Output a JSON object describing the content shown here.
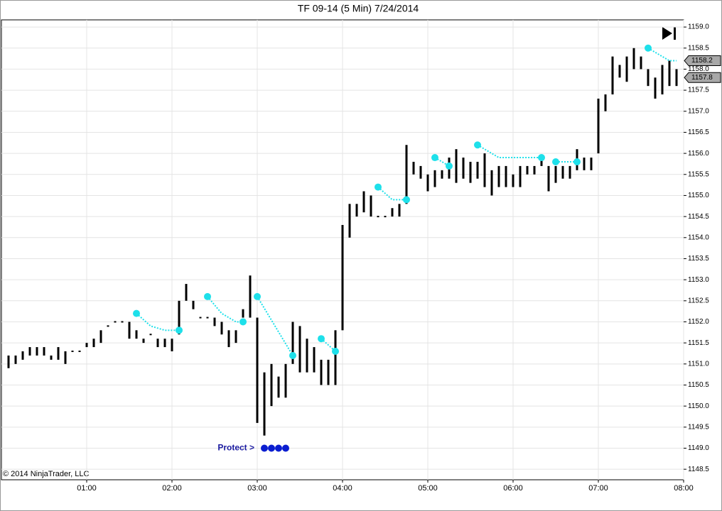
{
  "chart_data": {
    "type": "hlbar",
    "title": "TF 09-14 (5 Min)  7/24/2014",
    "footer": "© 2014 NinjaTrader, LLC",
    "color": "#000000",
    "grid": true,
    "xlim": [
      0,
      480
    ],
    "xticks": [
      {
        "value": 60,
        "label": "01:00"
      },
      {
        "value": 120,
        "label": "02:00"
      },
      {
        "value": 180,
        "label": "03:00"
      },
      {
        "value": 240,
        "label": "04:00"
      },
      {
        "value": 300,
        "label": "05:00"
      },
      {
        "value": 360,
        "label": "06:00"
      },
      {
        "value": 420,
        "label": "07:00"
      },
      {
        "value": 480,
        "label": "08:00"
      }
    ],
    "ylim": [
      1148.25,
      1159.17
    ],
    "yticks": [
      {
        "value": 1148.5,
        "label": "1148.5"
      },
      {
        "value": 1149,
        "label": "1149.0"
      },
      {
        "value": 1149.5,
        "label": "1149.5"
      },
      {
        "value": 1150,
        "label": "1150.0"
      },
      {
        "value": 1150.5,
        "label": "1150.5"
      },
      {
        "value": 1151,
        "label": "1151.0"
      },
      {
        "value": 1151.5,
        "label": "1151.5"
      },
      {
        "value": 1152,
        "label": "1152.0"
      },
      {
        "value": 1152.5,
        "label": "1152.5"
      },
      {
        "value": 1153,
        "label": "1153.0"
      },
      {
        "value": 1153.5,
        "label": "1153.5"
      },
      {
        "value": 1154,
        "label": "1154.0"
      },
      {
        "value": 1154.5,
        "label": "1154.5"
      },
      {
        "value": 1155,
        "label": "1155.0"
      },
      {
        "value": 1155.5,
        "label": "1155.5"
      },
      {
        "value": 1156,
        "label": "1156.0"
      },
      {
        "value": 1156.5,
        "label": "1156.5"
      },
      {
        "value": 1157,
        "label": "1157.0"
      },
      {
        "value": 1157.5,
        "label": "1157.5"
      },
      {
        "value": 1158,
        "label": "1158.0"
      },
      {
        "value": 1158.5,
        "label": "1158.5"
      },
      {
        "value": 1159,
        "label": "1159.0"
      }
    ],
    "x": [
      5,
      10,
      15,
      20,
      25,
      30,
      35,
      40,
      45,
      50,
      55,
      60,
      65,
      70,
      75,
      80,
      85,
      90,
      95,
      100,
      105,
      110,
      115,
      120,
      125,
      130,
      135,
      140,
      145,
      150,
      155,
      160,
      165,
      170,
      175,
      180,
      185,
      190,
      195,
      200,
      205,
      210,
      215,
      220,
      225,
      230,
      235,
      240,
      245,
      250,
      255,
      260,
      265,
      270,
      275,
      280,
      285,
      290,
      295,
      300,
      305,
      310,
      315,
      320,
      325,
      330,
      335,
      340,
      345,
      350,
      355,
      360,
      365,
      370,
      375,
      380,
      385,
      390,
      395,
      400,
      405,
      410,
      415,
      420,
      425,
      430,
      435,
      440,
      445,
      450,
      455,
      460,
      465,
      470,
      475
    ],
    "high": [
      1151.2,
      1151.2,
      1151.3,
      1151.4,
      1151.4,
      1151.4,
      1151.2,
      1151.4,
      1151.3,
      1151.3,
      1151.3,
      1151.5,
      1151.6,
      1151.8,
      1151.9,
      1152.0,
      1152.0,
      1152.0,
      1151.8,
      1151.6,
      1151.7,
      1151.6,
      1151.6,
      1151.6,
      1152.5,
      1152.9,
      1152.5,
      1152.1,
      1152.1,
      1152.1,
      1152.0,
      1151.8,
      1151.8,
      1152.3,
      1153.1,
      1152.1,
      1150.8,
      1151.0,
      1150.7,
      1151.0,
      1152.0,
      1151.9,
      1151.6,
      1151.4,
      1151.1,
      1151.1,
      1151.8,
      1154.3,
      1154.8,
      1154.8,
      1155.1,
      1155.0,
      1154.5,
      1154.5,
      1154.7,
      1154.8,
      1156.2,
      1155.8,
      1155.7,
      1155.5,
      1155.6,
      1155.6,
      1155.9,
      1156.1,
      1155.9,
      1155.8,
      1155.8,
      1156.0,
      1155.6,
      1155.7,
      1155.7,
      1155.5,
      1155.7,
      1155.7,
      1155.7,
      1155.9,
      1155.7,
      1155.7,
      1155.7,
      1155.7,
      1156.1,
      1155.9,
      1155.9,
      1157.3,
      1157.4,
      1158.3,
      1158.1,
      1158.3,
      1158.5,
      1158.3,
      1158.0,
      1157.8,
      1158.1,
      1158.2,
      1158.0
    ],
    "low": [
      1150.9,
      1151.0,
      1151.1,
      1151.2,
      1151.2,
      1151.2,
      1151.1,
      1151.1,
      1151.0,
      1151.3,
      1151.3,
      1151.4,
      1151.4,
      1151.5,
      1151.9,
      1152.0,
      1152.0,
      1151.6,
      1151.6,
      1151.5,
      1151.7,
      1151.4,
      1151.4,
      1151.3,
      1151.7,
      1152.5,
      1152.3,
      1152.1,
      1152.1,
      1151.9,
      1151.7,
      1151.4,
      1151.5,
      1152.1,
      1152.1,
      1149.6,
      1149.3,
      1150.0,
      1150.2,
      1150.2,
      1151.0,
      1150.8,
      1150.8,
      1150.8,
      1150.5,
      1150.5,
      1150.5,
      1151.8,
      1154.0,
      1154.5,
      1154.6,
      1154.5,
      1154.5,
      1154.5,
      1154.5,
      1154.5,
      1154.8,
      1155.5,
      1155.4,
      1155.1,
      1155.2,
      1155.4,
      1155.4,
      1155.3,
      1155.4,
      1155.3,
      1155.4,
      1155.2,
      1155.0,
      1155.2,
      1155.2,
      1155.2,
      1155.2,
      1155.5,
      1155.5,
      1155.7,
      1155.1,
      1155.3,
      1155.4,
      1155.4,
      1155.6,
      1155.6,
      1155.6,
      1156.0,
      1157.0,
      1157.4,
      1157.8,
      1157.7,
      1158.0,
      1158.0,
      1157.6,
      1157.3,
      1157.4,
      1157.6,
      1157.6
    ],
    "trail": {
      "color": "#1ee0ea",
      "x": [
        95,
        105,
        115,
        125,
        null,
        145,
        155,
        165,
        170,
        null,
        180,
        205,
        null,
        225,
        235,
        null,
        265,
        275,
        285,
        null,
        305,
        315,
        null,
        335,
        350,
        380,
        null,
        390,
        405,
        null,
        455,
        470,
        475
      ],
      "y": [
        1152.2,
        1151.9,
        1151.8,
        1151.8,
        null,
        1152.6,
        1152.2,
        1152.0,
        1152.0,
        null,
        1152.6,
        1151.2,
        null,
        1151.6,
        1151.3,
        null,
        1155.2,
        1154.9,
        1154.9,
        null,
        1155.9,
        1155.7,
        null,
        1156.2,
        1155.9,
        1155.9,
        null,
        1155.8,
        1155.8,
        null,
        1158.5,
        1158.2,
        1158.2
      ]
    },
    "stops": {
      "color": "#1ee0ea",
      "x": [
        95,
        125,
        145,
        170,
        180,
        205,
        225,
        235,
        265,
        285,
        305,
        315,
        335,
        380,
        390,
        405,
        455
      ],
      "y": [
        1152.2,
        1151.8,
        1152.6,
        1152.0,
        1152.6,
        1151.2,
        1151.6,
        1151.3,
        1155.2,
        1154.9,
        1155.9,
        1155.7,
        1156.2,
        1155.9,
        1155.8,
        1155.8,
        1158.5
      ]
    },
    "protect": {
      "label": "Protect >",
      "color": "#0b1ed0",
      "x": [
        185,
        190,
        195,
        200
      ],
      "y": [
        1149,
        1149,
        1149,
        1149
      ]
    },
    "price_markers": [
      1158.2,
      1157.8
    ]
  }
}
